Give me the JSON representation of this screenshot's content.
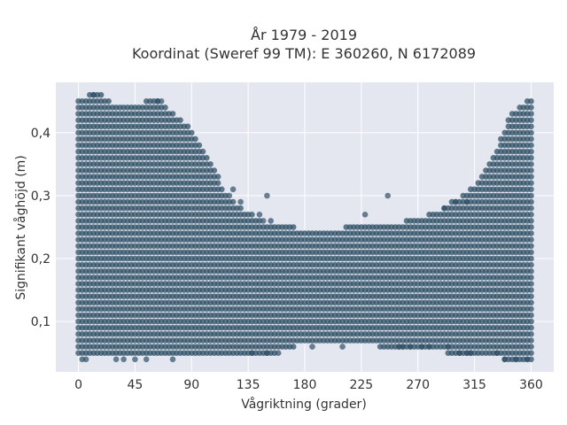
{
  "chart_data": {
    "type": "scatter",
    "title": [
      "År 1979 - 2019",
      "Koordinat (Sweref 99 TM): E 360260, N 6172089"
    ],
    "xlabel": "Vågriktning (grader)",
    "ylabel": "Signifikant våghöjd (m)",
    "xlim": [
      -18,
      378
    ],
    "ylim": [
      0.02,
      0.48
    ],
    "xticks": [
      0,
      45,
      90,
      135,
      180,
      225,
      270,
      315,
      360
    ],
    "xtick_labels": [
      "0",
      "45",
      "90",
      "135",
      "180",
      "225",
      "270",
      "315",
      "360"
    ],
    "yticks": [
      0.1,
      0.2,
      0.3,
      0.4
    ],
    "ytick_labels": [
      "0,1",
      "0,2",
      "0,3",
      "0,4"
    ],
    "grid": true,
    "marker_color": "#2f5066",
    "plot_bg": "#e5e7f0",
    "x_step": 3,
    "y_step": 0.01,
    "envelope": [
      {
        "x": 0,
        "ymin": 0.05,
        "ymax": 0.45
      },
      {
        "x": 15,
        "ymin": 0.05,
        "ymax": 0.46
      },
      {
        "x": 30,
        "ymin": 0.05,
        "ymax": 0.44
      },
      {
        "x": 45,
        "ymin": 0.05,
        "ymax": 0.44
      },
      {
        "x": 60,
        "ymin": 0.05,
        "ymax": 0.45
      },
      {
        "x": 75,
        "ymin": 0.05,
        "ymax": 0.43
      },
      {
        "x": 90,
        "ymin": 0.05,
        "ymax": 0.4
      },
      {
        "x": 100,
        "ymin": 0.05,
        "ymax": 0.37
      },
      {
        "x": 110,
        "ymin": 0.05,
        "ymax": 0.33
      },
      {
        "x": 120,
        "ymin": 0.05,
        "ymax": 0.29
      },
      {
        "x": 135,
        "ymin": 0.05,
        "ymax": 0.27
      },
      {
        "x": 150,
        "ymin": 0.05,
        "ymax": 0.25
      },
      {
        "x": 165,
        "ymin": 0.06,
        "ymax": 0.25
      },
      {
        "x": 180,
        "ymin": 0.07,
        "ymax": 0.24
      },
      {
        "x": 200,
        "ymin": 0.07,
        "ymax": 0.24
      },
      {
        "x": 225,
        "ymin": 0.07,
        "ymax": 0.25
      },
      {
        "x": 250,
        "ymin": 0.06,
        "ymax": 0.25
      },
      {
        "x": 270,
        "ymin": 0.06,
        "ymax": 0.26
      },
      {
        "x": 285,
        "ymin": 0.06,
        "ymax": 0.27
      },
      {
        "x": 300,
        "ymin": 0.05,
        "ymax": 0.29
      },
      {
        "x": 315,
        "ymin": 0.05,
        "ymax": 0.31
      },
      {
        "x": 330,
        "ymin": 0.05,
        "ymax": 0.36
      },
      {
        "x": 345,
        "ymin": 0.04,
        "ymax": 0.43
      },
      {
        "x": 360,
        "ymin": 0.04,
        "ymax": 0.45
      }
    ],
    "outliers": [
      {
        "x": 3,
        "y": 0.04
      },
      {
        "x": 6,
        "y": 0.04
      },
      {
        "x": 30,
        "y": 0.04
      },
      {
        "x": 36,
        "y": 0.04
      },
      {
        "x": 45,
        "y": 0.04
      },
      {
        "x": 54,
        "y": 0.04
      },
      {
        "x": 75,
        "y": 0.04
      },
      {
        "x": 12,
        "y": 0.46
      },
      {
        "x": 63,
        "y": 0.45
      },
      {
        "x": 66,
        "y": 0.45
      },
      {
        "x": 120,
        "y": 0.3
      },
      {
        "x": 123,
        "y": 0.31
      },
      {
        "x": 129,
        "y": 0.29
      },
      {
        "x": 150,
        "y": 0.3
      },
      {
        "x": 144,
        "y": 0.27
      },
      {
        "x": 147,
        "y": 0.26
      },
      {
        "x": 153,
        "y": 0.26
      },
      {
        "x": 246,
        "y": 0.3
      },
      {
        "x": 228,
        "y": 0.27
      },
      {
        "x": 291,
        "y": 0.28
      },
      {
        "x": 300,
        "y": 0.29
      },
      {
        "x": 309,
        "y": 0.29
      },
      {
        "x": 186,
        "y": 0.06
      },
      {
        "x": 210,
        "y": 0.06
      },
      {
        "x": 255,
        "y": 0.06
      },
      {
        "x": 258,
        "y": 0.06
      },
      {
        "x": 264,
        "y": 0.06
      },
      {
        "x": 273,
        "y": 0.06
      },
      {
        "x": 279,
        "y": 0.06
      },
      {
        "x": 294,
        "y": 0.06
      },
      {
        "x": 138,
        "y": 0.05
      },
      {
        "x": 150,
        "y": 0.05
      },
      {
        "x": 159,
        "y": 0.05
      },
      {
        "x": 303,
        "y": 0.05
      },
      {
        "x": 309,
        "y": 0.05
      },
      {
        "x": 312,
        "y": 0.05
      },
      {
        "x": 333,
        "y": 0.05
      },
      {
        "x": 339,
        "y": 0.04
      },
      {
        "x": 348,
        "y": 0.04
      },
      {
        "x": 357,
        "y": 0.04
      }
    ]
  }
}
